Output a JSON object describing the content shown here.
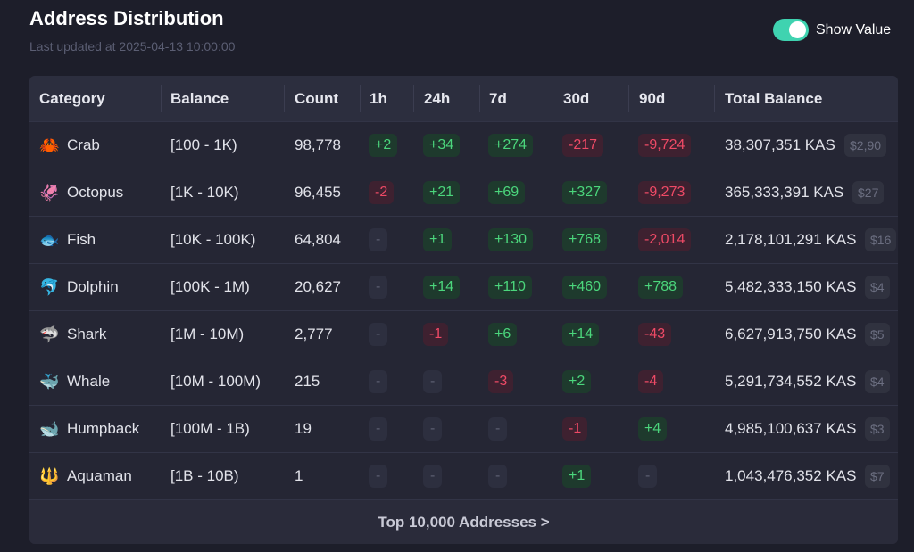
{
  "header": {
    "title": "Address Distribution",
    "subtitle": "Last updated at 2025-04-13 10:00:00",
    "toggle_label": "Show Value"
  },
  "table": {
    "columns": [
      "Category",
      "Balance",
      "Count",
      "1h",
      "24h",
      "7d",
      "30d",
      "90d",
      "Total Balance"
    ],
    "rows": [
      {
        "icon": "🦀",
        "category": "Crab",
        "balance": "[100 - 1K)",
        "count": "98,778",
        "changes": [
          "+2",
          "+34",
          "+274",
          "-217",
          "-9,724"
        ],
        "total": "38,307,351 KAS",
        "value": "$2,90"
      },
      {
        "icon": "🦑",
        "category": "Octopus",
        "balance": "[1K - 10K)",
        "count": "96,455",
        "changes": [
          "-2",
          "+21",
          "+69",
          "+327",
          "-9,273"
        ],
        "total": "365,333,391 KAS",
        "value": "$27"
      },
      {
        "icon": "🐟",
        "category": "Fish",
        "balance": "[10K - 100K)",
        "count": "64,804",
        "changes": [
          "-",
          "+1",
          "+130",
          "+768",
          "-2,014"
        ],
        "total": "2,178,101,291 KAS",
        "value": "$16"
      },
      {
        "icon": "🐬",
        "category": "Dolphin",
        "balance": "[100K - 1M)",
        "count": "20,627",
        "changes": [
          "-",
          "+14",
          "+110",
          "+460",
          "+788"
        ],
        "total": "5,482,333,150 KAS",
        "value": "$4"
      },
      {
        "icon": "🦈",
        "category": "Shark",
        "balance": "[1M - 10M)",
        "count": "2,777",
        "changes": [
          "-",
          "-1",
          "+6",
          "+14",
          "-43"
        ],
        "total": "6,627,913,750 KAS",
        "value": "$5"
      },
      {
        "icon": "🐳",
        "category": "Whale",
        "balance": "[10M - 100M)",
        "count": "215",
        "changes": [
          "-",
          "-",
          "-3",
          "+2",
          "-4"
        ],
        "total": "5,291,734,552 KAS",
        "value": "$4"
      },
      {
        "icon": "🐋",
        "category": "Humpback",
        "balance": "[100M - 1B)",
        "count": "19",
        "changes": [
          "-",
          "-",
          "-",
          "-1",
          "+4"
        ],
        "total": "4,985,100,637 KAS",
        "value": "$3"
      },
      {
        "icon": "🔱",
        "category": "Aquaman",
        "balance": "[1B - 10B)",
        "count": "1",
        "changes": [
          "-",
          "-",
          "-",
          "+1",
          "-"
        ],
        "total": "1,043,476,352 KAS",
        "value": "$7"
      }
    ],
    "footer_link": "Top 10,000 Addresses >"
  }
}
